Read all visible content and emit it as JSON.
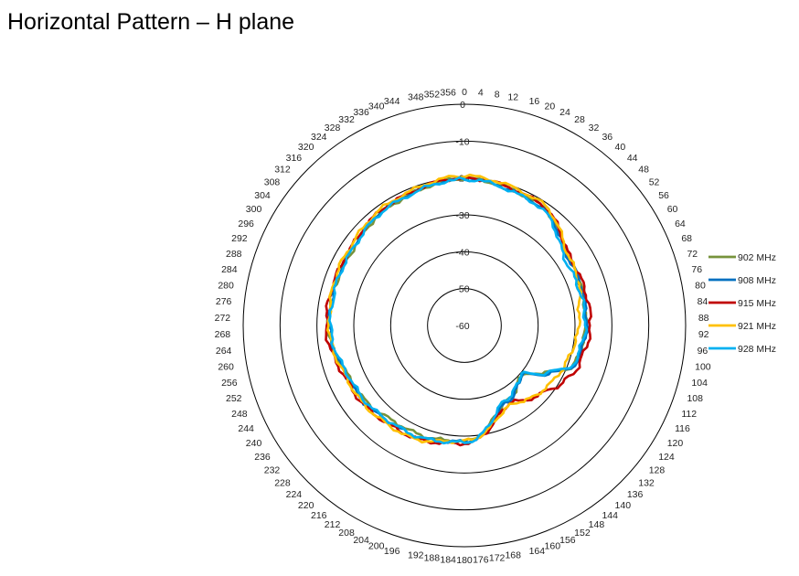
{
  "title": "Horizontal Pattern – H plane",
  "chart_data": {
    "type": "polar-line",
    "title": "Horizontal Pattern – H plane",
    "radial_ticks": [
      0,
      -10,
      -20,
      -30,
      -40,
      -50,
      -60
    ],
    "radial_range": [
      -60,
      0
    ],
    "angle_ticks_deg": [
      0,
      4,
      8,
      12,
      16,
      20,
      24,
      28,
      32,
      36,
      40,
      44,
      48,
      52,
      56,
      60,
      64,
      68,
      72,
      76,
      80,
      84,
      88,
      92,
      96,
      100,
      104,
      108,
      112,
      116,
      120,
      124,
      128,
      132,
      136,
      140,
      144,
      148,
      152,
      156,
      160,
      164,
      168,
      172,
      176,
      180,
      184,
      188,
      192,
      196,
      200,
      204,
      208,
      212,
      216,
      220,
      224,
      228,
      232,
      236,
      240,
      244,
      248,
      252,
      256,
      260,
      264,
      268,
      272,
      276,
      280,
      284,
      288,
      292,
      296,
      300,
      304,
      308,
      312,
      316,
      320,
      324,
      328,
      332,
      336,
      340,
      344,
      348,
      352,
      356
    ],
    "legend_position": "right",
    "angle_keys": [
      0,
      30,
      60,
      90,
      110,
      120,
      130,
      150,
      180,
      210,
      240,
      270,
      300,
      330,
      360
    ],
    "series": [
      {
        "name": "902 MHz",
        "color": "#77933c",
        "values": [
          -20.2,
          -21.3,
          -26.3,
          -27.1,
          -28.3,
          -34.5,
          -39.5,
          -36.5,
          -28.6,
          -27.9,
          -26.0,
          -23.0,
          -23.5,
          -21.8,
          -20.2
        ]
      },
      {
        "name": "908 MHz",
        "color": "#0070c0",
        "values": [
          -20.3,
          -21.6,
          -26.5,
          -26.8,
          -28.0,
          -34.0,
          -39.4,
          -36.3,
          -28.5,
          -27.0,
          -25.5,
          -23.4,
          -23.2,
          -21.5,
          -20.3
        ]
      },
      {
        "name": "915 MHz",
        "color": "#c00000",
        "values": [
          -20.0,
          -21.0,
          -26.0,
          -25.8,
          -27.2,
          -29.0,
          -32.0,
          -35.5,
          -28.0,
          -26.5,
          -25.0,
          -22.5,
          -22.8,
          -21.3,
          -20.0
        ]
      },
      {
        "name": "921 MHz",
        "color": "#ffc000",
        "values": [
          -19.5,
          -20.6,
          -26.3,
          -29.0,
          -30.5,
          -31.5,
          -32.5,
          -35.0,
          -28.7,
          -26.2,
          -25.2,
          -23.3,
          -22.5,
          -21.0,
          -19.5
        ]
      },
      {
        "name": "928 MHz",
        "color": "#00b0f0",
        "values": [
          -20.4,
          -21.8,
          -27.5,
          -27.2,
          -28.5,
          -34.5,
          -39.6,
          -37.0,
          -28.3,
          -27.2,
          -26.0,
          -23.7,
          -23.4,
          -21.8,
          -20.4
        ]
      }
    ]
  }
}
